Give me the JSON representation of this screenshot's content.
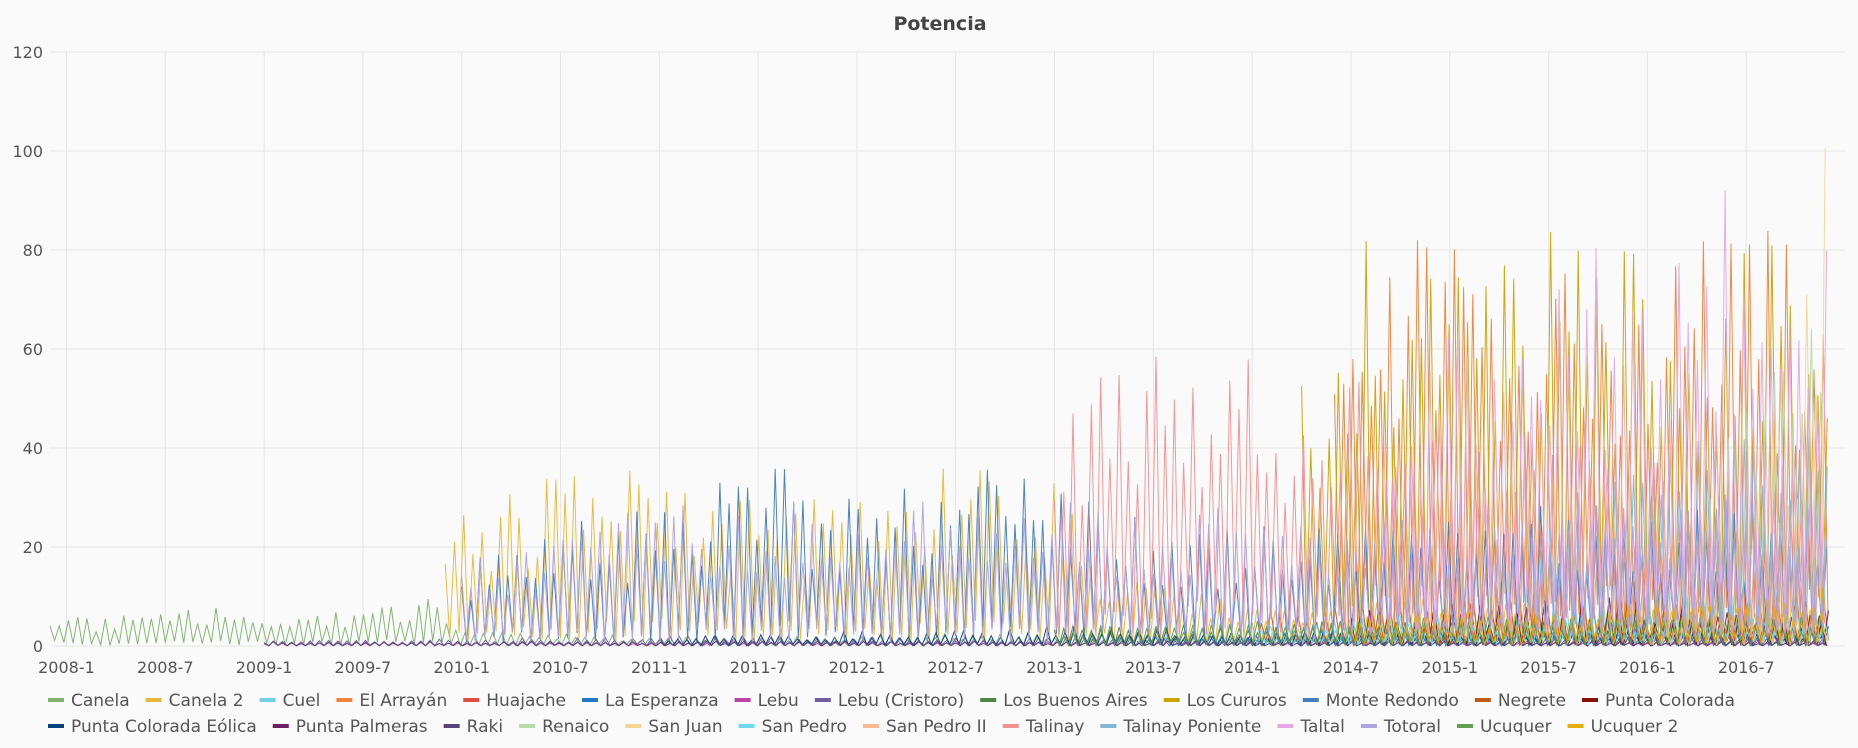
{
  "chart_data": {
    "type": "line",
    "title": "Potencia",
    "xlabel": "",
    "ylabel": "",
    "ylim": [
      0,
      120
    ],
    "y_ticks": [
      0,
      20,
      40,
      60,
      80,
      100,
      120
    ],
    "x_ticks": [
      "2008-1",
      "2008-7",
      "2009-1",
      "2009-7",
      "2010-1",
      "2010-7",
      "2011-1",
      "2011-7",
      "2012-1",
      "2012-7",
      "2013-1",
      "2013-7",
      "2014-1",
      "2014-7",
      "2015-1",
      "2015-7",
      "2016-1",
      "2016-7"
    ],
    "x_range": [
      "2007-12",
      "2017-01"
    ],
    "grid": true,
    "legend_position": "bottom",
    "series": [
      {
        "name": "Canela",
        "color": "#7eb26d",
        "points": [
          [
            "2007-12",
            9
          ],
          [
            "2008-3",
            6
          ],
          [
            "2008-7",
            7
          ],
          [
            "2008-11",
            8
          ],
          [
            "2009-3",
            7
          ],
          [
            "2009-7",
            8
          ],
          [
            "2009-11",
            10
          ],
          [
            "2010-1",
            3
          ],
          [
            "2011-1",
            2
          ],
          [
            "2012-1",
            2
          ],
          [
            "2013-1",
            3
          ],
          [
            "2014-1",
            2
          ],
          [
            "2015-1",
            3
          ],
          [
            "2016-1",
            3
          ],
          [
            "2016-12",
            3
          ]
        ]
      },
      {
        "name": "Canela 2",
        "color": "#eab839",
        "points": [
          [
            "2009-12",
            30
          ],
          [
            "2010-3",
            33
          ],
          [
            "2010-7",
            35
          ],
          [
            "2010-11",
            40
          ],
          [
            "2011-1",
            42
          ],
          [
            "2011-4",
            35
          ],
          [
            "2011-7",
            30
          ],
          [
            "2012-1",
            32
          ],
          [
            "2012-7",
            38
          ],
          [
            "2012-11",
            36
          ],
          [
            "2013-1",
            35
          ],
          [
            "2013-3",
            20
          ],
          [
            "2014-1",
            8
          ],
          [
            "2015-1",
            10
          ],
          [
            "2016-1",
            9
          ],
          [
            "2016-12",
            10
          ]
        ]
      },
      {
        "name": "Cuel",
        "color": "#6ed0e0",
        "points": [
          [
            "2014-6",
            5
          ],
          [
            "2015-1",
            12
          ],
          [
            "2015-7",
            18
          ],
          [
            "2016-1",
            15
          ],
          [
            "2016-7",
            18
          ],
          [
            "2016-12",
            15
          ]
        ]
      },
      {
        "name": "El Arrayán",
        "color": "#ef843c",
        "points": [
          [
            "2014-6",
            85
          ],
          [
            "2014-10",
            95
          ],
          [
            "2015-1",
            80
          ],
          [
            "2015-6",
            88
          ],
          [
            "2015-9",
            92
          ],
          [
            "2016-1",
            78
          ],
          [
            "2016-6",
            85
          ],
          [
            "2016-12",
            88
          ]
        ]
      },
      {
        "name": "Huajache",
        "color": "#e24d42",
        "points": [
          [
            "2014-2",
            3
          ],
          [
            "2015-1",
            4
          ],
          [
            "2016-1",
            4
          ],
          [
            "2016-12",
            5
          ]
        ]
      },
      {
        "name": "La Esperanza",
        "color": "#1f78c1",
        "points": [
          [
            "2013-6",
            2
          ],
          [
            "2014-1",
            3
          ],
          [
            "2015-1",
            4
          ],
          [
            "2016-12",
            4
          ]
        ]
      },
      {
        "name": "Lebu",
        "color": "#ba43a9",
        "points": [
          [
            "2009-1",
            1
          ],
          [
            "2011-1",
            1
          ],
          [
            "2013-1",
            1
          ],
          [
            "2016-12",
            1
          ]
        ]
      },
      {
        "name": "Lebu (Cristoro)",
        "color": "#705da0",
        "points": [
          [
            "2009-1",
            1
          ],
          [
            "2011-1",
            2
          ],
          [
            "2013-1",
            2
          ],
          [
            "2016-12",
            2
          ]
        ]
      },
      {
        "name": "Los Buenos Aires",
        "color": "#508642",
        "points": [
          [
            "2013-1",
            4
          ],
          [
            "2014-1",
            5
          ],
          [
            "2015-1",
            5
          ],
          [
            "2016-12",
            6
          ]
        ]
      },
      {
        "name": "Los Cururos",
        "color": "#cca300",
        "points": [
          [
            "2014-4",
            55
          ],
          [
            "2014-9",
            90
          ],
          [
            "2015-1",
            75
          ],
          [
            "2015-6",
            85
          ],
          [
            "2015-10",
            95
          ],
          [
            "2016-2",
            70
          ],
          [
            "2016-7",
            80
          ],
          [
            "2016-12",
            85
          ]
        ]
      },
      {
        "name": "Monte Redondo",
        "color": "#447ebc",
        "points": [
          [
            "2010-1",
            20
          ],
          [
            "2010-7",
            25
          ],
          [
            "2011-1",
            28
          ],
          [
            "2011-7",
            40
          ],
          [
            "2012-1",
            30
          ],
          [
            "2012-7",
            38
          ],
          [
            "2013-1",
            32
          ],
          [
            "2013-7",
            25
          ],
          [
            "2014-1",
            25
          ],
          [
            "2015-1",
            28
          ],
          [
            "2016-1",
            30
          ],
          [
            "2016-12",
            28
          ]
        ]
      },
      {
        "name": "Negrete",
        "color": "#c15c17",
        "points": [
          [
            "2014-1",
            8
          ],
          [
            "2015-1",
            10
          ],
          [
            "2016-1",
            10
          ],
          [
            "2016-12",
            12
          ]
        ]
      },
      {
        "name": "Punta Colorada",
        "color": "#890f02",
        "points": [
          [
            "2014-7",
            8
          ],
          [
            "2015-7",
            10
          ],
          [
            "2016-7",
            10
          ],
          [
            "2016-12",
            9
          ]
        ]
      },
      {
        "name": "Punta Colorada Eólica",
        "color": "#0a437c",
        "points": [
          [
            "2011-1",
            2
          ],
          [
            "2012-1",
            3
          ],
          [
            "2013-1",
            4
          ],
          [
            "2014-1",
            3
          ],
          [
            "2016-12",
            3
          ]
        ]
      },
      {
        "name": "Punta Palmeras",
        "color": "#6d1f62",
        "points": [
          [
            "2015-10",
            6
          ],
          [
            "2016-3",
            8
          ],
          [
            "2016-12",
            8
          ]
        ]
      },
      {
        "name": "Raki",
        "color": "#584477",
        "points": [
          [
            "2009-1",
            1
          ],
          [
            "2011-1",
            1
          ],
          [
            "2014-1",
            1
          ],
          [
            "2016-12",
            1
          ]
        ]
      },
      {
        "name": "Renaico",
        "color": "#b7dbab",
        "points": [
          [
            "2016-2",
            20
          ],
          [
            "2016-7",
            50
          ],
          [
            "2016-11",
            75
          ],
          [
            "2016-12",
            70
          ]
        ]
      },
      {
        "name": "San Juan",
        "color": "#f4d598",
        "points": [
          [
            "2016-9",
            40
          ],
          [
            "2016-12",
            110
          ]
        ]
      },
      {
        "name": "San Pedro",
        "color": "#70dbed",
        "points": [
          [
            "2014-1",
            5
          ],
          [
            "2015-1",
            8
          ],
          [
            "2016-12",
            10
          ]
        ]
      },
      {
        "name": "San Pedro II",
        "color": "#f9ba8f",
        "points": [
          [
            "2016-1",
            5
          ],
          [
            "2016-12",
            8
          ]
        ]
      },
      {
        "name": "Talinay",
        "color": "#f29191",
        "points": [
          [
            "2013-1",
            50
          ],
          [
            "2013-7",
            68
          ],
          [
            "2013-11",
            70
          ],
          [
            "2014-1",
            60
          ],
          [
            "2014-7",
            55
          ],
          [
            "2015-1",
            45
          ],
          [
            "2016-1",
            40
          ],
          [
            "2016-12",
            38
          ]
        ]
      },
      {
        "name": "Talinay Poniente",
        "color": "#82b5d8",
        "points": [
          [
            "2015-6",
            30
          ],
          [
            "2016-1",
            40
          ],
          [
            "2016-7",
            45
          ],
          [
            "2016-12",
            42
          ]
        ]
      },
      {
        "name": "Taltal",
        "color": "#e5a8e2",
        "points": [
          [
            "2014-9",
            50
          ],
          [
            "2015-3",
            70
          ],
          [
            "2015-8",
            85
          ],
          [
            "2016-1",
            80
          ],
          [
            "2016-6",
            95
          ],
          [
            "2016-12",
            88
          ]
        ]
      },
      {
        "name": "Totoral",
        "color": "#aea2e0",
        "points": [
          [
            "2010-1",
            20
          ],
          [
            "2010-7",
            25
          ],
          [
            "2011-1",
            28
          ],
          [
            "2011-7",
            30
          ],
          [
            "2012-1",
            28
          ],
          [
            "2012-7",
            30
          ],
          [
            "2013-1",
            30
          ],
          [
            "2014-1",
            28
          ],
          [
            "2015-1",
            30
          ],
          [
            "2016-1",
            32
          ],
          [
            "2016-12",
            30
          ]
        ]
      },
      {
        "name": "Ucuquer",
        "color": "#629e51",
        "points": [
          [
            "2013-1",
            4
          ],
          [
            "2014-1",
            5
          ],
          [
            "2015-1",
            6
          ],
          [
            "2016-12",
            6
          ]
        ]
      },
      {
        "name": "Ucuquer 2",
        "color": "#e5ac0e",
        "points": [
          [
            "2014-7",
            6
          ],
          [
            "2015-1",
            8
          ],
          [
            "2016-1",
            9
          ],
          [
            "2016-12",
            10
          ]
        ]
      }
    ]
  }
}
